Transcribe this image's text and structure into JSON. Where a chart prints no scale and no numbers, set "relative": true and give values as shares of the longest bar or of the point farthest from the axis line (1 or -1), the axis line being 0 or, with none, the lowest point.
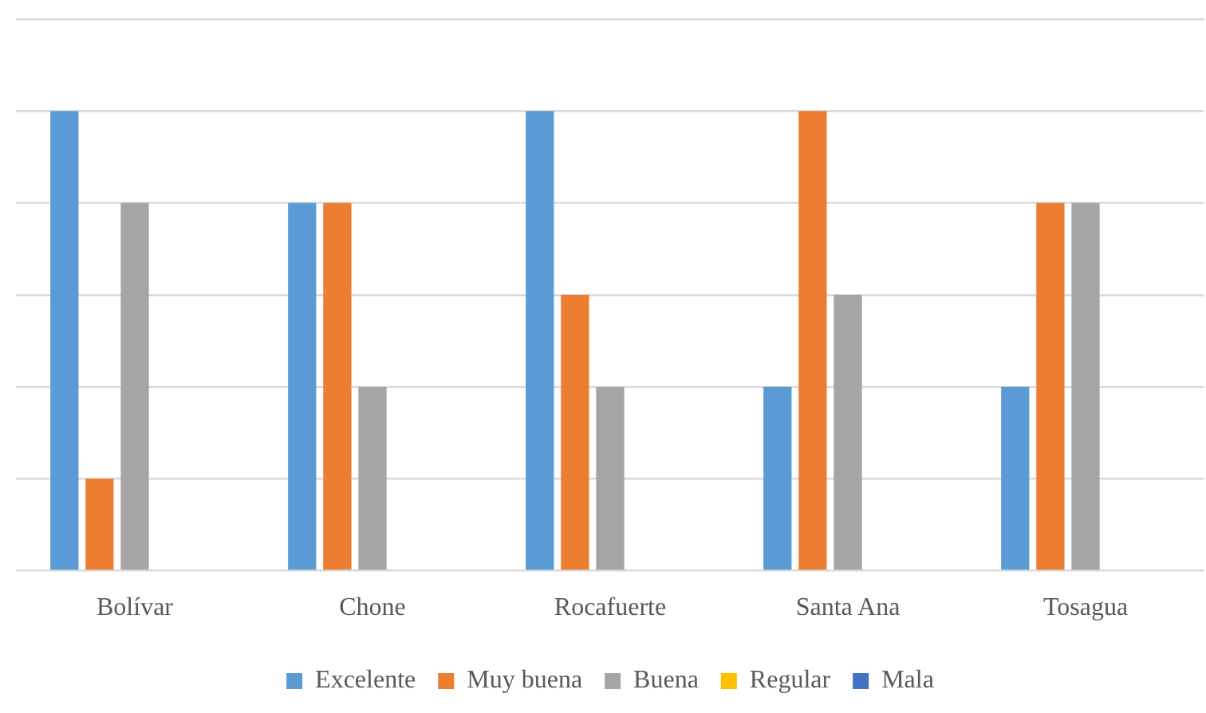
{
  "chart_data": {
    "type": "bar",
    "relative": true,
    "grid": "y",
    "legend": "bottom",
    "categories": [
      "Bolívar",
      "Chone",
      "Rocafuerte",
      "Santa Ana",
      "Tosagua"
    ],
    "series": [
      {
        "name": "Excelente",
        "color": "#5b9bd5",
        "values": [
          1,
          0.8,
          1,
          0.4,
          0.4
        ]
      },
      {
        "name": "Muy buena",
        "color": "#ed7d31",
        "values": [
          0.2,
          0.8,
          0.6,
          1,
          0.8
        ]
      },
      {
        "name": "Buena",
        "color": "#a5a5a5",
        "values": [
          0.8,
          0.4,
          0.4,
          0.6,
          0.8
        ]
      },
      {
        "name": "Regular",
        "color": "#ffc000",
        "values": [
          0,
          0,
          0,
          0,
          0
        ]
      },
      {
        "name": "Mala",
        "color": "#4472c4",
        "values": [
          0,
          0,
          0,
          0,
          0
        ]
      }
    ]
  }
}
